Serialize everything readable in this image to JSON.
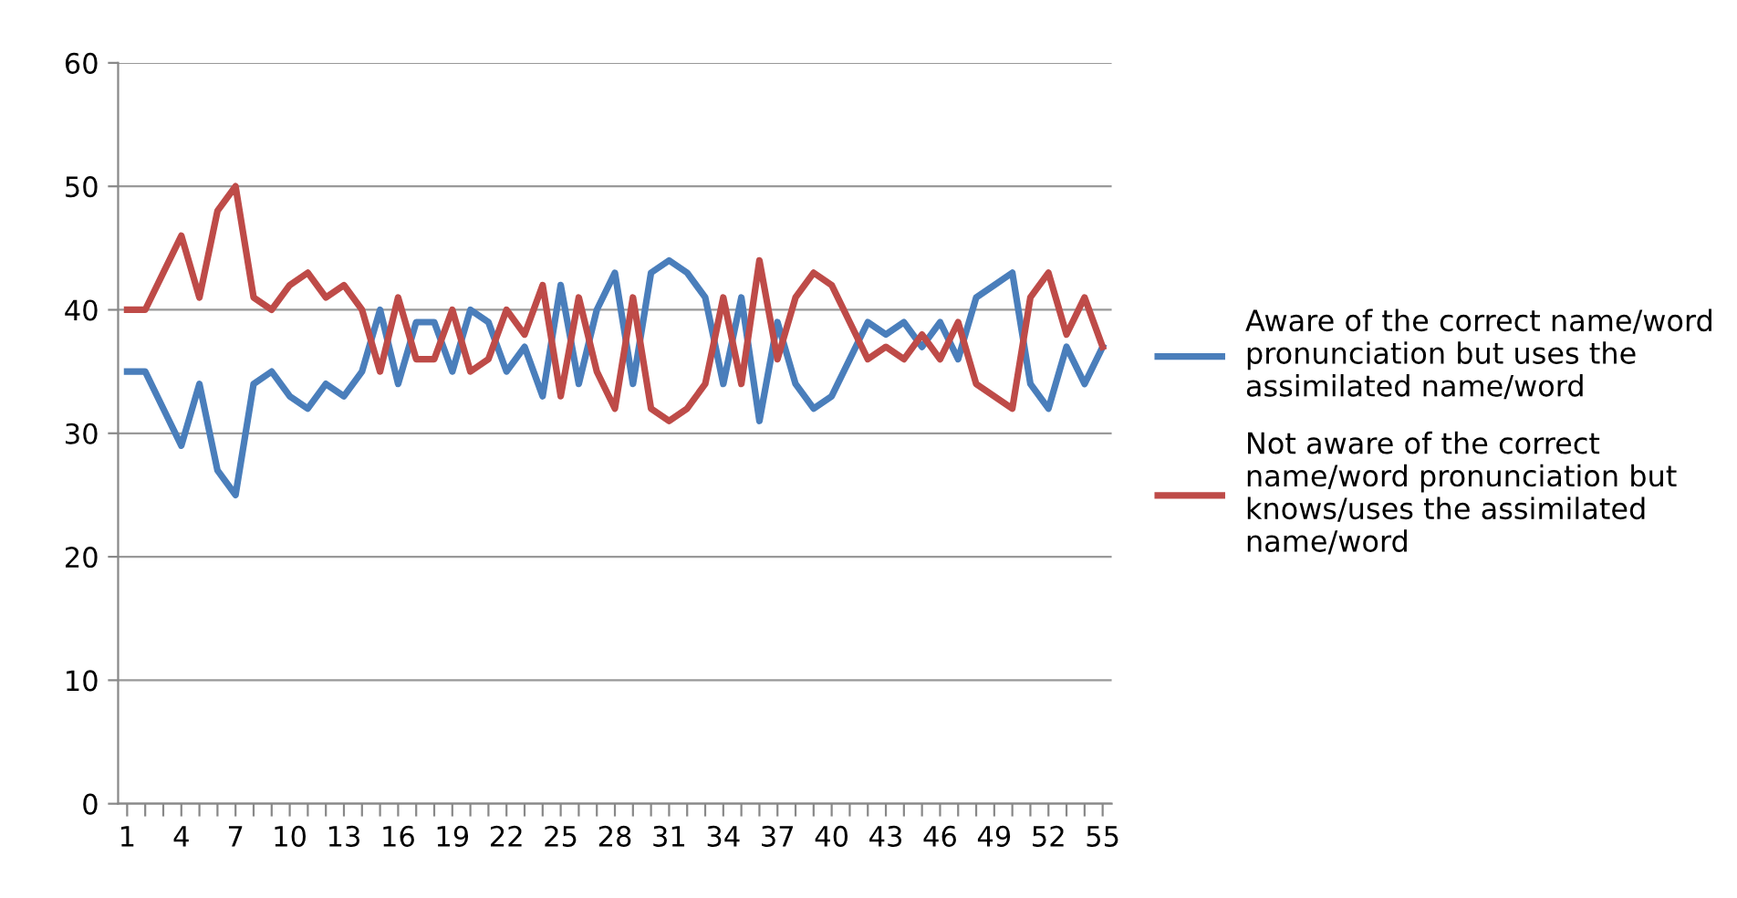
{
  "chart_data": {
    "type": "line",
    "categories": [
      "1",
      null,
      null,
      "4",
      null,
      null,
      "7",
      null,
      null,
      "10",
      null,
      null,
      "13",
      null,
      null,
      "16",
      null,
      null,
      "19",
      null,
      null,
      "22",
      null,
      null,
      "25",
      null,
      null,
      "28",
      null,
      null,
      "31",
      null,
      null,
      "34",
      null,
      null,
      "37",
      null,
      null,
      "40",
      null,
      null,
      "43",
      null,
      null,
      "46",
      null,
      null,
      "49",
      null,
      null,
      "52",
      null,
      null,
      "55"
    ],
    "series": [
      {
        "name": "Aware of the correct name/word pronunciation but uses the assimilated name/word",
        "color": "#4a7ebb",
        "values": [
          35,
          35,
          32,
          29,
          34,
          27,
          25,
          34,
          35,
          33,
          32,
          34,
          33,
          35,
          40,
          34,
          39,
          39,
          35,
          40,
          39,
          35,
          37,
          33,
          42,
          34,
          40,
          43,
          34,
          43,
          44,
          43,
          41,
          34,
          41,
          31,
          39,
          34,
          32,
          33,
          36,
          39,
          38,
          39,
          37,
          39,
          36,
          41,
          42,
          43,
          34,
          32,
          37,
          34,
          37
        ]
      },
      {
        "name": "Not aware of the correct name/word pronunciation but knows/uses the assimilated name/word",
        "color": "#be4b48",
        "values": [
          40,
          40,
          43,
          46,
          41,
          48,
          50,
          41,
          40,
          42,
          43,
          41,
          42,
          40,
          35,
          41,
          36,
          36,
          40,
          35,
          36,
          40,
          38,
          42,
          33,
          41,
          35,
          32,
          41,
          32,
          31,
          32,
          34,
          41,
          34,
          44,
          36,
          41,
          43,
          42,
          39,
          36,
          37,
          36,
          38,
          36,
          39,
          34,
          33,
          32,
          41,
          43,
          38,
          41,
          37
        ]
      }
    ],
    "ylim": [
      0,
      60
    ],
    "yticks": [
      0,
      10,
      20,
      30,
      40,
      50,
      60
    ],
    "grid": "y",
    "legend": "right",
    "marker": "none",
    "line_style": "solid"
  }
}
